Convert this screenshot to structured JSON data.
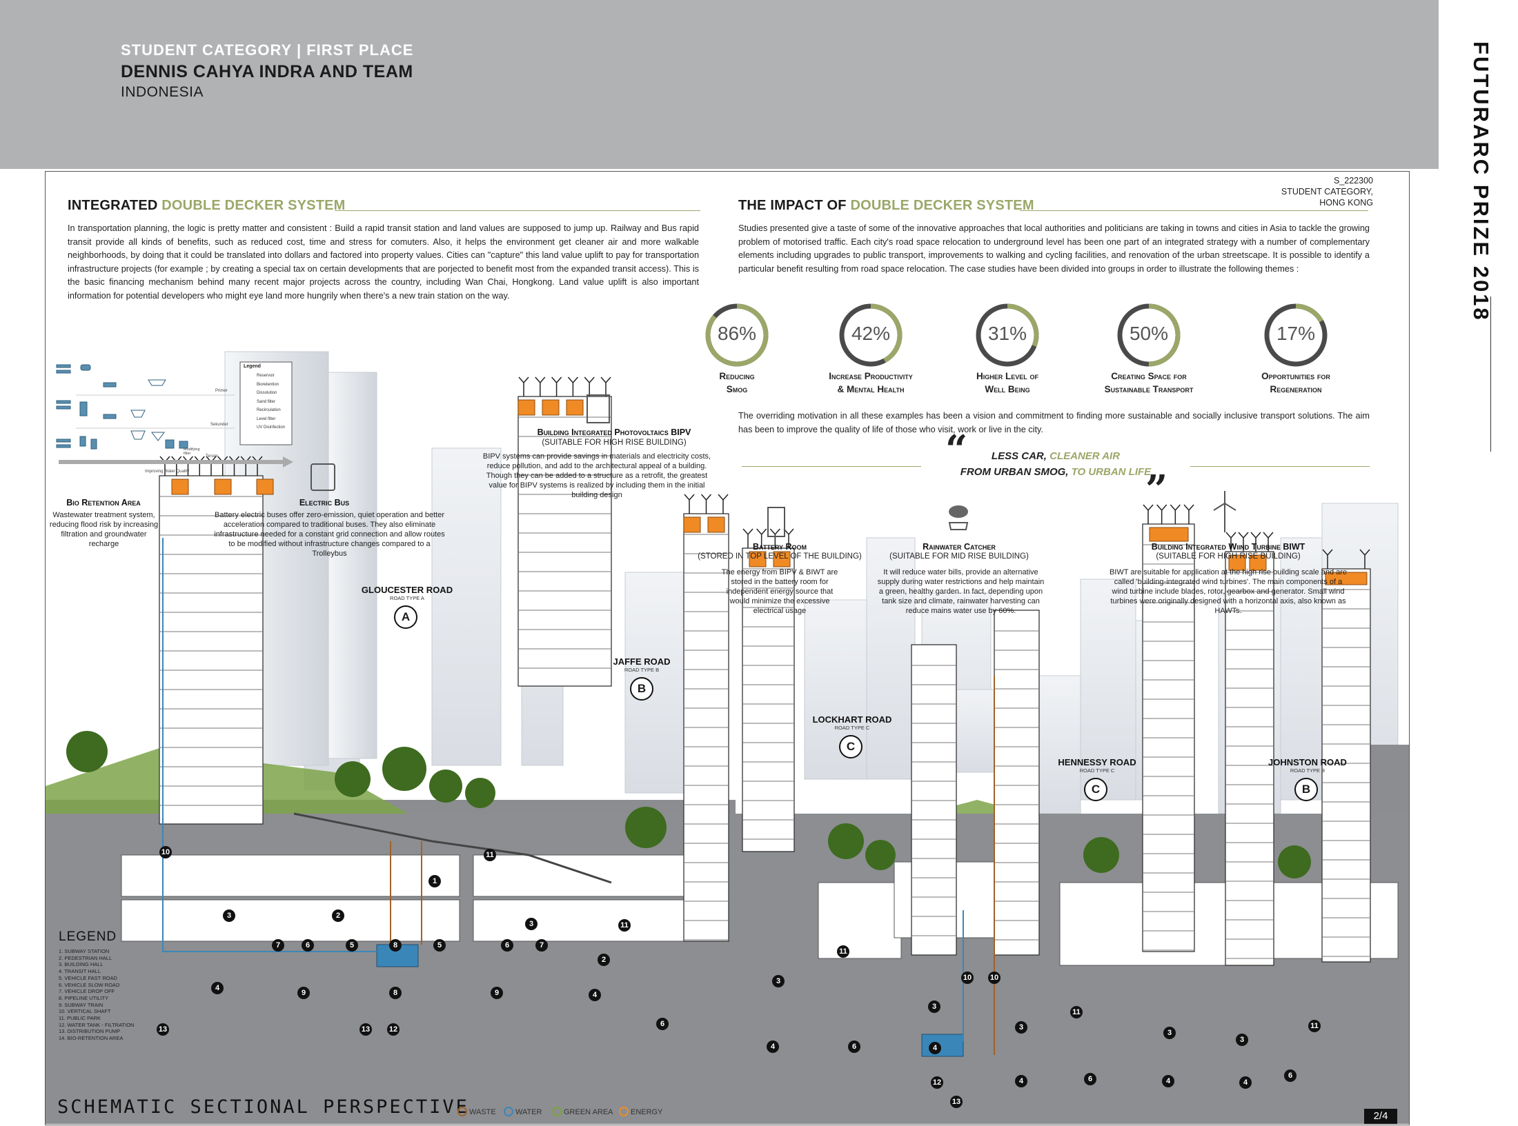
{
  "header": {
    "category_prefix": "STUDENT CATEGORY | ",
    "category_place": "FIRST PLACE",
    "names": "DENNIS CAHYA INDRA AND TEAM",
    "country": "INDONESIA"
  },
  "prize_title": "FUTURARC PRIZE 2018",
  "entry": {
    "code": "S_222300",
    "category": "STUDENT CATEGORY, HONG KONG"
  },
  "left_section": {
    "title_prefix": "INTEGRATED",
    "title_accent": "DOUBLE DECKER SYSTEM",
    "body": "In transportation planning, the logic is pretty matter and consistent : Build a rapid transit station and land values are supposed to jump up. Railway and Bus rapid transit provide all kinds of benefits, such as reduced cost, time and stress for comuters. Also, it helps the environment get cleaner air and more walkable neighborhoods, by doing that it could be translated into dollars and factored into property values. Cities can \"capture\" this land value uplift to pay for transportation infrastructure projects (for example ; by creating a special tax on certain developments that are porjected to benefit most from the expanded transit access). This is the basic financing mechanism behind many recent major projects across the country, including Wan Chai, Hongkong. Land value uplift is also important information for potential developers who might eye land more hungrily when there's a new train station on the way."
  },
  "right_section": {
    "title_prefix": "THE IMPACT OF",
    "title_accent": "DOUBLE DECKER SYSTEM",
    "body": "Studies presented give a taste of some of the innovative approaches that local authorities and politicians are taking in towns and cities in Asia to tackle the growing problem of motorised traffic. Each city's road space relocation to underground level has been one part of an integrated strategy with a number of complementary elements including upgrades to public transport, improvements to walking and cycling facilities, and renovation of the urban streetscape. It is possible to identify a particular benefit resulting from road space relocation. The case studies have been divided into groups in order to illustrate the following themes :",
    "body2": "The overriding motivation in all these examples has been a vision and commitment to finding more sustainable and socially inclusive transport solutions. The aim has been to improve the quality of life of those who visit, work or live in the city."
  },
  "gauges": [
    {
      "value": 86,
      "label": "86%",
      "caption1": "Reducing",
      "caption2": "Smog"
    },
    {
      "value": 42,
      "label": "42%",
      "caption1": "Increase Productivity",
      "caption2": "& Mental Health"
    },
    {
      "value": 31,
      "label": "31%",
      "caption1": "Higher Level of",
      "caption2": "Well Being"
    },
    {
      "value": 50,
      "label": "50%",
      "caption1": "Creating Space for",
      "caption2": "Sustainable Transport"
    },
    {
      "value": 17,
      "label": "17%",
      "caption1": "Opportunities for",
      "caption2": "Regeneration"
    }
  ],
  "quote": {
    "line1a": "LESS CAR, ",
    "line1b": "CLEANER AIR",
    "line2a": "FROM URBAN  SMOG, ",
    "line2b": "TO URBAN LIFE",
    "open": "“",
    "close": "”"
  },
  "annotations": {
    "bipv": {
      "title": "Building Integrated Photovoltaics BIPV",
      "sub": "(SUITABLE FOR HIGH RISE BUILDING)",
      "body": "BIPV systems can provide savings in materials and electricity costs, reduce pollution, and add to the architectural appeal of a building. Though they can be added to a structure as a retrofit, the greatest value for BIPV systems is realized by including them in the initial building design"
    },
    "bio": {
      "title": "Bio Retention Area",
      "body": "Wastewater treatment system, reducing flood risk by increasing filtration and groundwater recharge"
    },
    "bus": {
      "title": "Electric Bus",
      "body": "Battery electric buses offer zero-emission, quiet operation and better acceleration compared to traditional buses. They also eliminate infrastructure needed for a constant grid connection and allow routes to be modified without infrastructure changes compared to a Trolleybus"
    },
    "battery": {
      "title": "Battery Room",
      "sub": "(STORED IN TOP LEVEL OF THE BUILDING)",
      "body": "The energy from BIPV & BIWT are stored in the battery room for independent energy source that would minimize the excessive electrical usage"
    },
    "rain": {
      "title": "Rainwater Catcher",
      "sub": "(SUITABLE FOR MID RISE BUILDING)",
      "body": "It will reduce water bills, provide an alternative supply during water restrictions and help maintain a green, healthy garden. In fact, depending upon tank size and climate, rainwater harvesting can reduce mains water use by 60%."
    },
    "wind": {
      "title": "Building Integrated Wiind Turbine BIWT",
      "sub": "(SUITABLE FOR HIGH RISE BUILDING)",
      "body": "BIWT are suitable for application at the high rise building scale and are called 'building-integrated wind turbines'. The main components of a wind turbine include blades, rotor, gearbox and generator. Small wind turbines were originally designed with a horizontal axis, also known as HAWTs."
    }
  },
  "water_diagram": {
    "legend_title": "Legend",
    "legend_items": [
      "Reservoir",
      "Bioretention",
      "Dissolution",
      "Sand filter",
      "Recirculation",
      "Level filter",
      "UV Disinfection"
    ],
    "stage_primer": "Primer",
    "stage_sekunder": "Sekunder",
    "stage_tersier": "Tersier",
    "stage_mech": "Modifying filter",
    "arrow_label": "Improving Water Quality"
  },
  "roads": [
    {
      "name": "GLOUCESTER ROAD",
      "type": "ROAD TYPE A",
      "letter": "A"
    },
    {
      "name": "JAFFE ROAD",
      "type": "ROAD TYPE B",
      "letter": "B"
    },
    {
      "name": "LOCKHART ROAD",
      "type": "ROAD TYPE C",
      "letter": "C"
    },
    {
      "name": "HENNESSY ROAD",
      "type": "ROAD TYPE C",
      "letter": "C"
    },
    {
      "name": "JOHNSTON ROAD",
      "type": "ROAD TYPE B",
      "letter": "B"
    }
  ],
  "legend": {
    "title": "LEGEND",
    "items": [
      "1.  SUBWAY STATION",
      "2.  PEDESTRIAN HALL",
      "3.  BUILDING HALL",
      "4.  TRANSIT HALL",
      "5.  VEHICLE FAST ROAD",
      "6.  VEHICLE SLOW ROAD",
      "7.  VEHICLE DROP OFF",
      "8.  PIPELINE UTILITY",
      "9.  SUBWAY TRAIN",
      "10. VERTICAL SHAFT",
      "11. PUBLIC PARK",
      "12. WATER TANK - FILTRATION",
      "13. DISTRIBUTION PUMP",
      "14. BIO-RETENTION AREA"
    ]
  },
  "footer": {
    "schematic": "SCHEMATIC SECTIONAL PERSPECTIVE",
    "keys": [
      {
        "label": "WASTE",
        "color": "#a0622a"
      },
      {
        "label": "WATER",
        "color": "#3b86b8"
      },
      {
        "label": "GREEN AREA",
        "color": "#7da23f"
      },
      {
        "label": "ENERGY",
        "color": "#f08a24"
      }
    ],
    "page": "2/4"
  },
  "colors": {
    "accent_green": "#9aa768",
    "energy_orange": "#f08a24",
    "header_grey": "#b1b2b4"
  }
}
